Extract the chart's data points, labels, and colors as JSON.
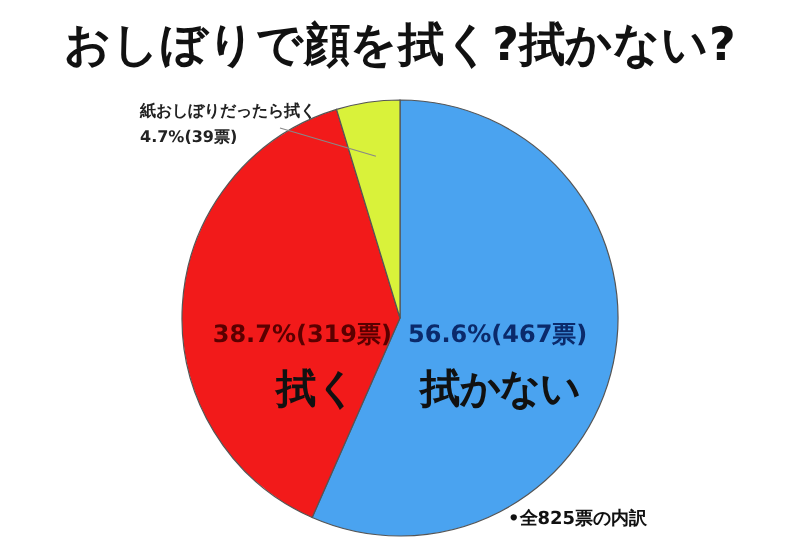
{
  "chart_data": {
    "type": "pie",
    "title": "おしぼりで顔を拭く?拭かない?",
    "categories": [
      "拭かない",
      "拭く",
      "紙おしぼりだったら拭く"
    ],
    "values": [
      56.6,
      38.7,
      4.7
    ],
    "value_labels": [
      "56.6%(467票)",
      "38.7%(319票)",
      "4.7%(39票)"
    ],
    "colors": [
      "#4aa3f0",
      "#f21a1a",
      "#d9f23a"
    ],
    "annotations": [
      "•全825票の内訳"
    ]
  }
}
